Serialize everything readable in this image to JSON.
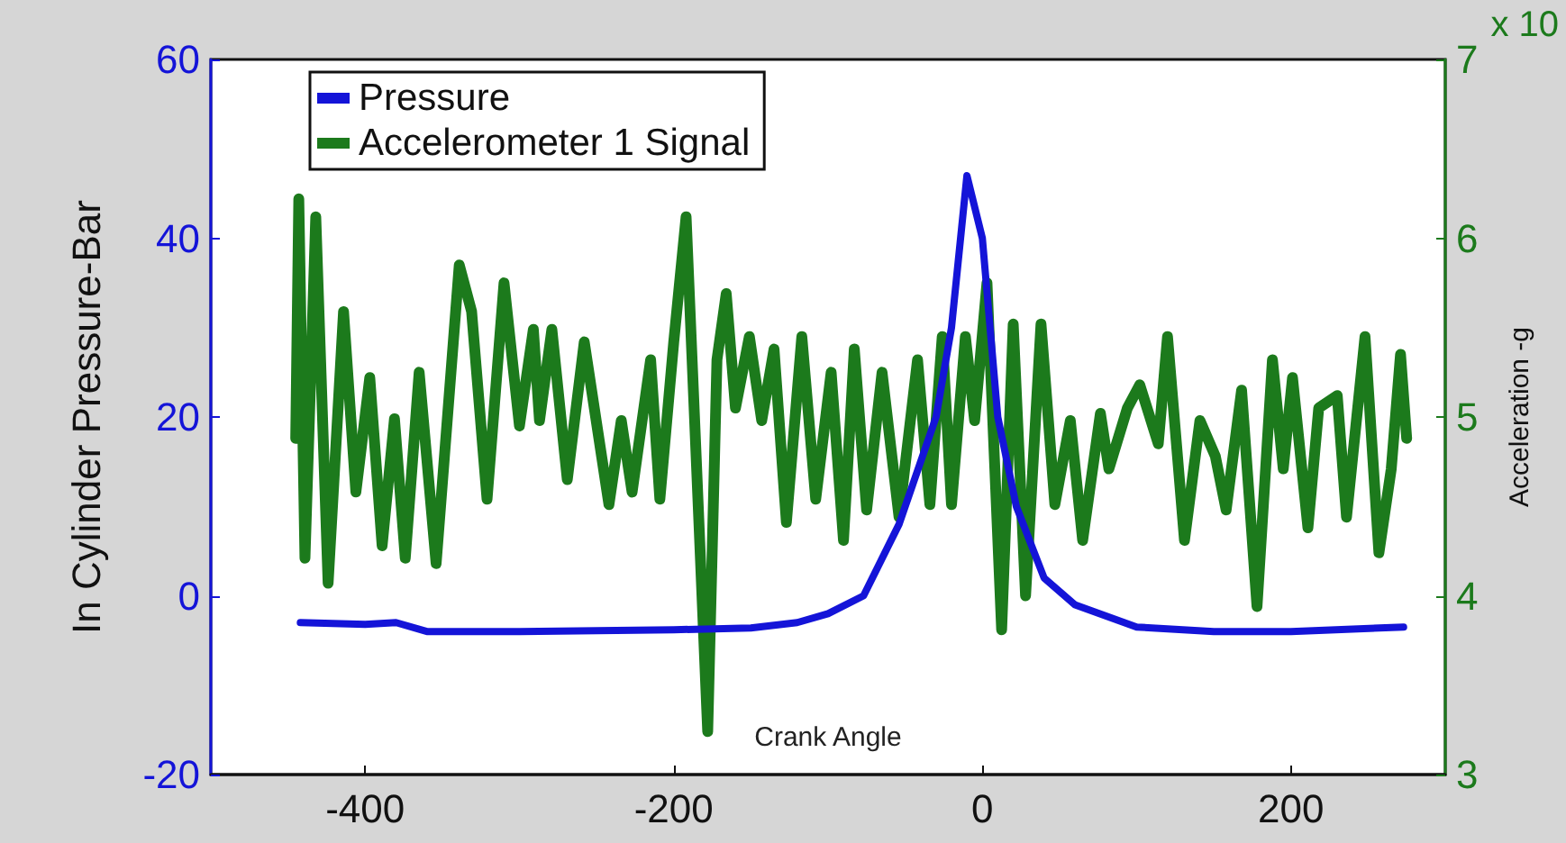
{
  "chart_data": {
    "type": "line",
    "xlabel": "Crank Angle",
    "ylabel": "In Cylinder Pressure-Bar",
    "y2label": "Acceleration -g",
    "annotations": [
      "x 10"
    ],
    "xlim": [
      -500,
      300
    ],
    "xticks": [
      -400,
      -200,
      0,
      200
    ],
    "ylim": [
      -20,
      60
    ],
    "yticks": [
      -20,
      0,
      20,
      40,
      60
    ],
    "y2lim": [
      3,
      7
    ],
    "y2ticks": [
      3,
      4,
      5,
      6,
      7
    ],
    "grid": false,
    "legend": "top left",
    "marker": "none",
    "line_style": "solid",
    "series": [
      {
        "name": "Pressure",
        "color": "#1414d8",
        "x": [
          -442,
          -400,
          -380,
          -360,
          -300,
          -200,
          -150,
          -120,
          -100,
          -77,
          -54,
          -30,
          -20,
          -10,
          0,
          10,
          22,
          40,
          60,
          100,
          150,
          200,
          273
        ],
        "values": [
          -3,
          -3.2,
          -3,
          -4,
          -4,
          -3.8,
          -3.6,
          -3,
          -2,
          0,
          8,
          20,
          30,
          47,
          40,
          20,
          10,
          2,
          -1,
          -3.5,
          -4,
          -4,
          -3.5
        ]
      },
      {
        "name": "Accelerometer 1 Signal",
        "color": "#1c7a1c",
        "axis": "y2",
        "x": [
          -445,
          -443,
          -439,
          -432,
          -424,
          -414,
          -406,
          -397,
          -389,
          -381,
          -374,
          -365,
          -354,
          -339,
          -331,
          -321,
          -310,
          -300,
          -291,
          -287,
          -279,
          -269,
          -258,
          -242,
          -234,
          -227,
          -215,
          -209,
          -200,
          -192,
          -178,
          -172,
          -166,
          -160,
          -151,
          -143,
          -135,
          -127,
          -117,
          -108,
          -98,
          -90,
          -83,
          -75,
          -65,
          -54,
          -42,
          -34,
          -26,
          -20,
          -11,
          -5,
          3,
          12.5,
          20,
          28,
          38,
          47,
          57,
          65,
          76.5,
          82,
          94,
          102,
          114,
          120,
          131,
          141,
          151,
          158,
          168,
          178,
          188,
          195,
          201,
          211,
          218,
          230,
          236,
          248,
          257,
          265,
          271,
          275
        ],
        "values": [
          4.88,
          6.22,
          4.21,
          6.12,
          4.07,
          5.59,
          4.58,
          5.22,
          4.28,
          4.99,
          4.21,
          5.25,
          4.18,
          5.85,
          5.59,
          4.54,
          5.75,
          4.95,
          5.49,
          4.98,
          5.49,
          4.65,
          5.42,
          4.51,
          4.98,
          4.58,
          5.32,
          4.54,
          5.42,
          6.12,
          3.24,
          5.32,
          5.69,
          5.05,
          5.45,
          4.98,
          5.38,
          4.41,
          5.45,
          4.54,
          5.25,
          4.31,
          5.38,
          4.48,
          5.25,
          4.44,
          5.32,
          4.51,
          5.45,
          4.51,
          5.45,
          4.98,
          5.75,
          3.81,
          5.52,
          4.0,
          5.52,
          4.51,
          4.98,
          4.31,
          5.02,
          4.71,
          5.05,
          5.18,
          4.85,
          5.45,
          4.31,
          4.98,
          4.78,
          4.48,
          5.15,
          3.94,
          5.32,
          4.71,
          5.22,
          4.38,
          5.05,
          5.12,
          4.44,
          5.45,
          4.24,
          4.71,
          5.35,
          4.88
        ]
      }
    ]
  }
}
